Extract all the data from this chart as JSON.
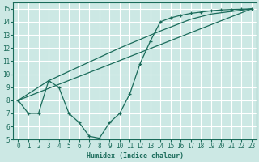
{
  "xlabel": "Humidex (Indice chaleur)",
  "ylabel": "",
  "bg_color": "#cce8e4",
  "grid_color": "#ffffff",
  "line_color": "#1a6b5a",
  "xlim": [
    -0.5,
    23.5
  ],
  "ylim": [
    5,
    15.5
  ],
  "xticks": [
    0,
    1,
    2,
    3,
    4,
    5,
    6,
    7,
    8,
    9,
    10,
    11,
    12,
    13,
    14,
    15,
    16,
    17,
    18,
    19,
    20,
    21,
    22,
    23
  ],
  "yticks": [
    5,
    6,
    7,
    8,
    9,
    10,
    11,
    12,
    13,
    14,
    15
  ],
  "line1_x": [
    0,
    1,
    2,
    3,
    4,
    5,
    6,
    7,
    8,
    9,
    10,
    11,
    12,
    13,
    14,
    15,
    16,
    17,
    18,
    19,
    20,
    21,
    22,
    23
  ],
  "line1_y": [
    8.0,
    7.0,
    7.0,
    9.5,
    9.0,
    7.0,
    6.3,
    5.25,
    5.1,
    6.3,
    7.0,
    8.5,
    10.8,
    12.5,
    14.0,
    14.3,
    14.5,
    14.65,
    14.75,
    14.85,
    14.92,
    14.95,
    14.97,
    15.0
  ],
  "line2_x": [
    0,
    23
  ],
  "line2_y": [
    8.0,
    15.0
  ],
  "line3_x": [
    0,
    3,
    10,
    14,
    17,
    19,
    21,
    23
  ],
  "line3_y": [
    8.0,
    9.5,
    12.0,
    13.3,
    14.2,
    14.6,
    14.8,
    15.0
  ]
}
